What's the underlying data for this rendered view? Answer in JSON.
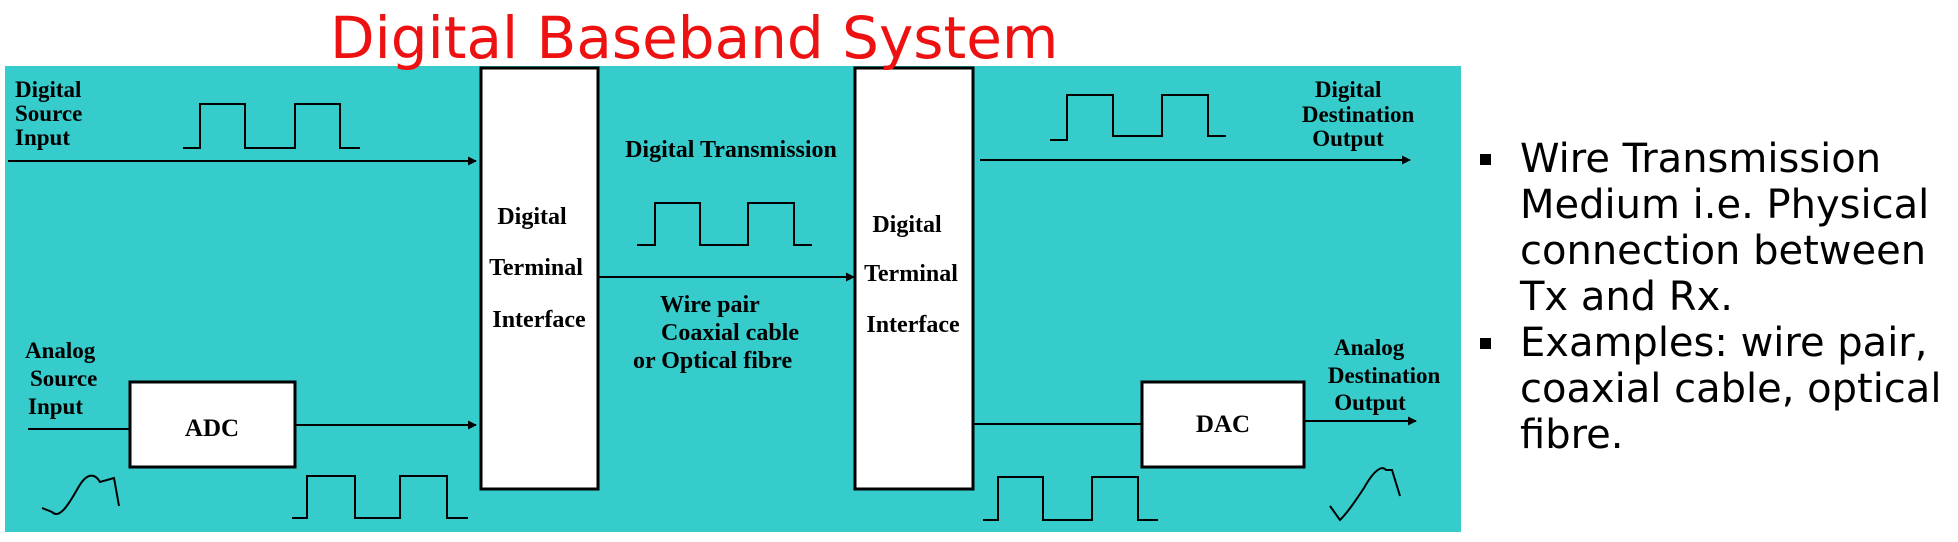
{
  "title": "Digital Baseband System",
  "colors": {
    "panel": "#36cccc",
    "title": "#ee1111"
  },
  "diagram": {
    "digital_source_input": [
      "Digital",
      "Source",
      "Input"
    ],
    "analog_source_input": [
      "Analog",
      "Source",
      "Input"
    ],
    "adc": "ADC",
    "dac": "DAC",
    "terminal_left": [
      "Digital",
      "Terminal",
      "Interface"
    ],
    "terminal_right": [
      "Digital",
      "Terminal",
      "Interface"
    ],
    "digital_transmission": "Digital Transmission",
    "medium": [
      "Wire pair",
      "Coaxial cable",
      "or Optical fibre"
    ],
    "digital_destination_output": [
      "Digital",
      "Destination",
      "Output"
    ],
    "analog_destination_output": [
      "Analog",
      "Destination",
      "Output"
    ]
  },
  "bullets": [
    "Wire Transmission Medium i.e. Physical connection between Tx and Rx.",
    "Examples: wire pair, coaxial cable, optical fibre."
  ]
}
